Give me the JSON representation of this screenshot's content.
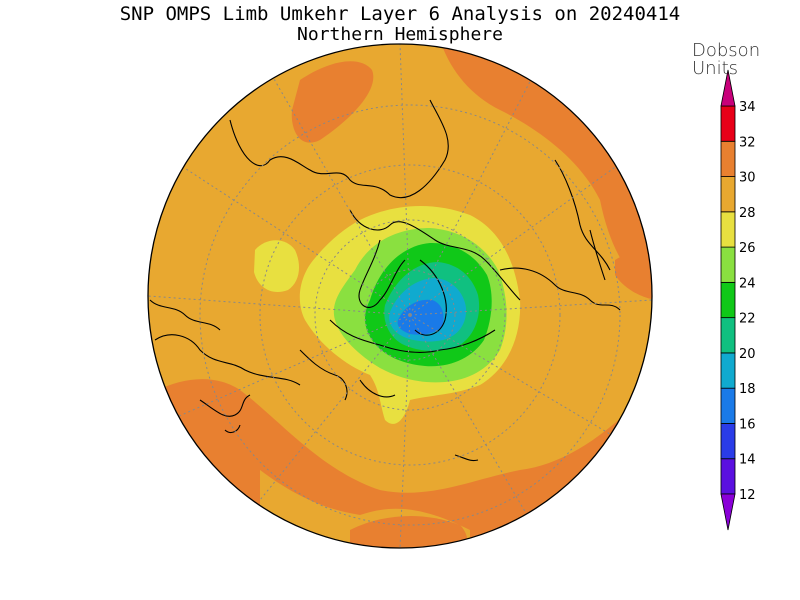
{
  "title": {
    "line1": "SNP OMPS Limb Umkehr Layer 6 Analysis on 20240414",
    "line2": "Northern Hemisphere"
  },
  "colorbar": {
    "unit_line1": "Dobson",
    "unit_line2": "Units",
    "levels": [
      12,
      14,
      16,
      18,
      20,
      22,
      24,
      26,
      28,
      30,
      32,
      34
    ],
    "colors": [
      "#8a00d8",
      "#5a10e0",
      "#2a3ce8",
      "#1a7ae8",
      "#10aacf",
      "#10c080",
      "#10c818",
      "#8ae040",
      "#e8e040",
      "#e8a830",
      "#e88030",
      "#e80018"
    ],
    "under_color": "#c800c8",
    "over_color": "#c8007a"
  },
  "map": {
    "projection": "north polar stereographic",
    "background_level_color": "#e8a830",
    "grid": true
  }
}
